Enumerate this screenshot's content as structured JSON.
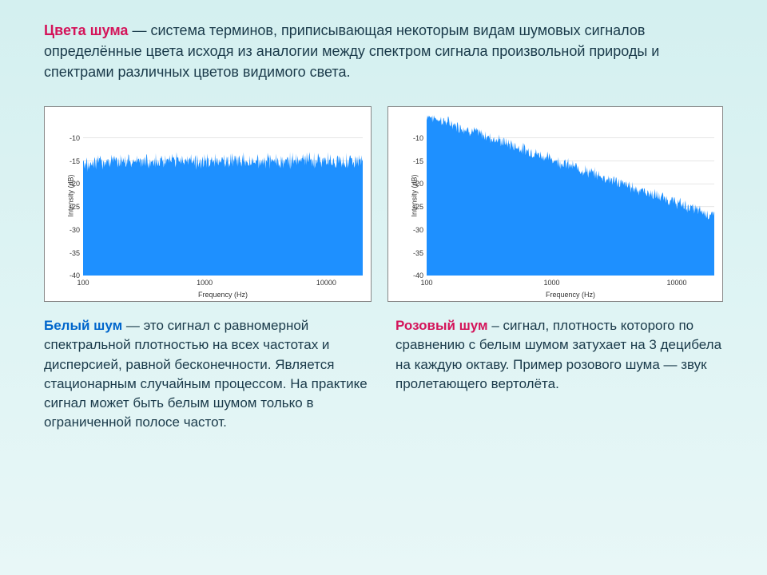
{
  "intro": {
    "title": "Цвета шума",
    "text": " — система терминов, приписывающая некоторым видам шумовых сигналов определённые цвета исходя из аналогии между спектром сигнала произвольной природы и спектрами различных цветов видимого света."
  },
  "white": {
    "title": "Белый шум",
    "text": " — это сигнал с равномерной спектральной плотностью на всех частотах и дисперсией, равной бесконечности. Является стационарным случайным процессом. На практике сигнал может быть белым шумом только в ограниченной полосе частот."
  },
  "pink": {
    "title": "Розовый шум",
    "text": " – сигнал, плотность которого по сравнению с белым шумом затухает на 3 децибела на каждую октаву. Пример розового шума — звук пролетающего вертолёта."
  },
  "axis": {
    "ylabel": "Intensity (dB)",
    "xlabel": "Frequency (Hz)",
    "yticks": [
      -10,
      -15,
      -20,
      -25,
      -30,
      -35,
      -40
    ],
    "xticks": [
      100,
      1000,
      10000
    ],
    "ylim": [
      -40,
      -5
    ],
    "xlim_log": [
      2,
      4.3
    ]
  },
  "style": {
    "fill_color": "#1e90ff",
    "bg_color": "#ffffff",
    "grid_color": "#cccccc",
    "title_color": "#d4145a",
    "white_color": "#0066cc",
    "text_color": "#1a3a4a"
  },
  "white_chart": {
    "type": "spectrum",
    "mean_db": -15,
    "variation": 2.5
  },
  "pink_chart": {
    "type": "spectrum",
    "start_db": -5,
    "end_db": -27,
    "variation": 2.0
  }
}
